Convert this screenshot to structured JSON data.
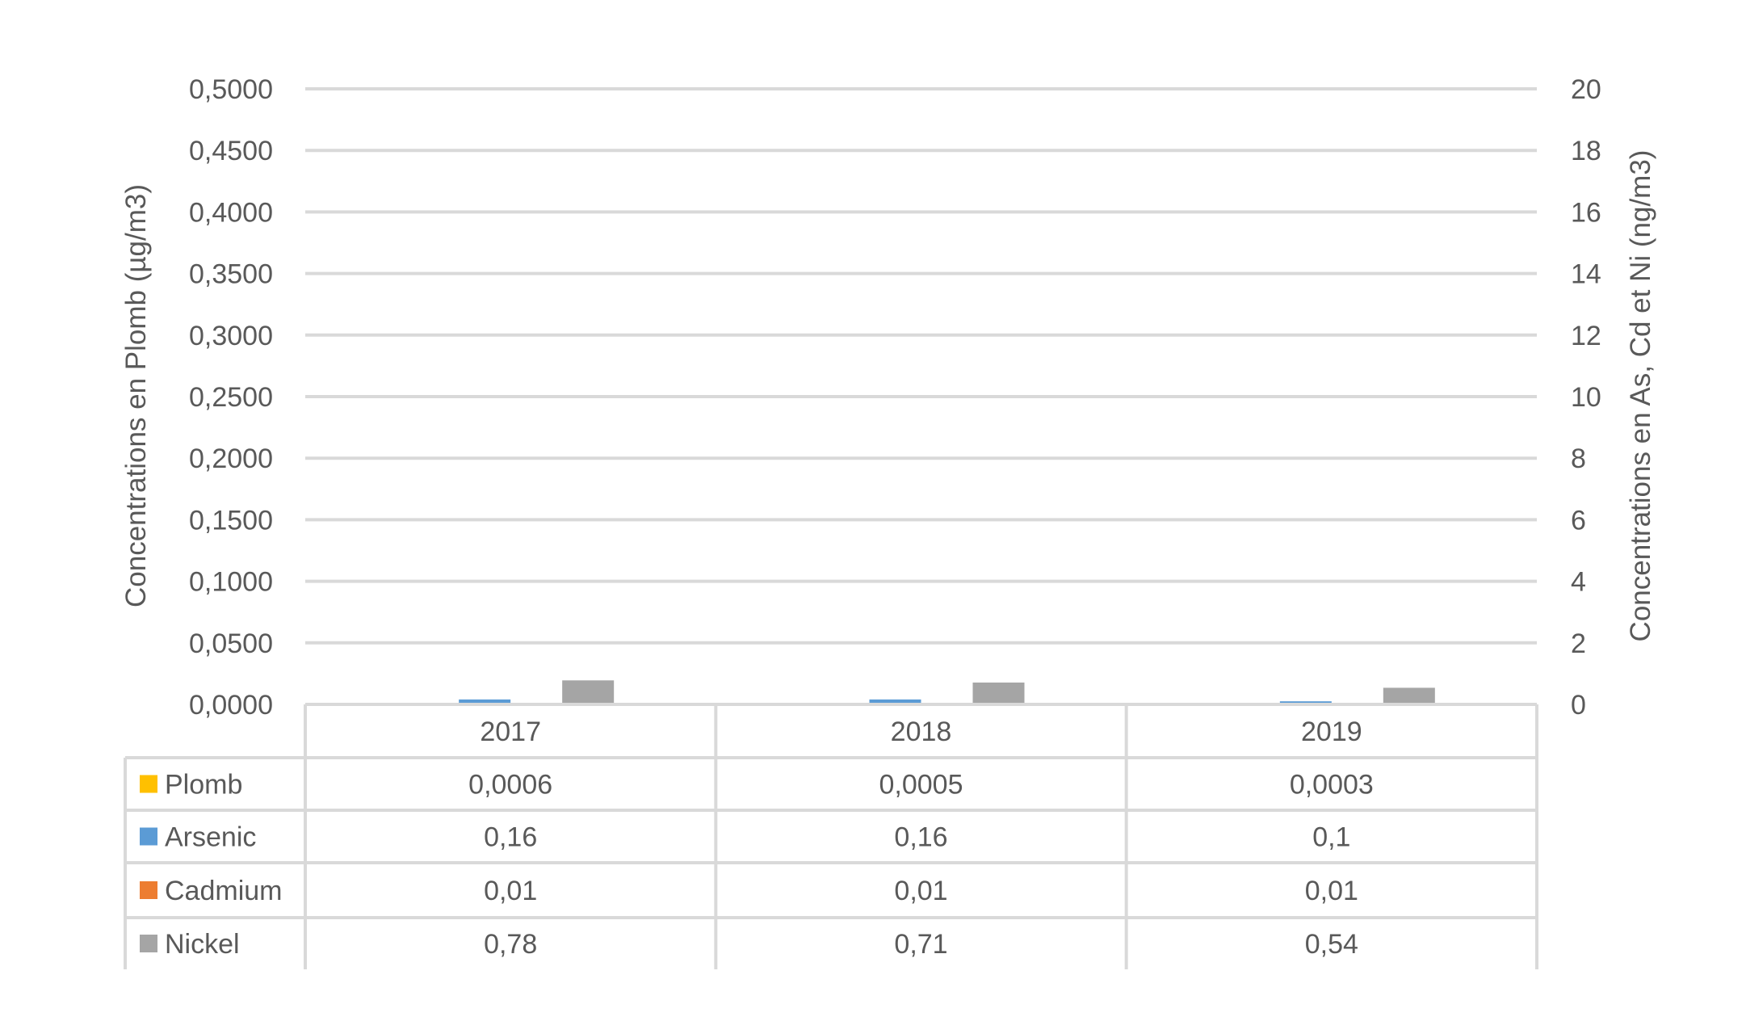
{
  "chart_data": {
    "type": "bar",
    "categories": [
      "2017",
      "2018",
      "2019"
    ],
    "series": [
      {
        "name": "Plomb",
        "axis": "left",
        "color": "#FFC000",
        "values": [
          0.0006,
          0.0005,
          0.0003
        ],
        "labels": [
          "0,0006",
          "0,0005",
          "0,0003"
        ]
      },
      {
        "name": "Arsenic",
        "axis": "right",
        "color": "#5B9BD5",
        "values": [
          0.16,
          0.16,
          0.1
        ],
        "labels": [
          "0,16",
          "0,16",
          "0,1"
        ]
      },
      {
        "name": "Cadmium",
        "axis": "right",
        "color": "#ED7D31",
        "values": [
          0.01,
          0.01,
          0.01
        ],
        "labels": [
          "0,01",
          "0,01",
          "0,01"
        ]
      },
      {
        "name": "Nickel",
        "axis": "right",
        "color": "#A5A5A5",
        "values": [
          0.78,
          0.71,
          0.54
        ],
        "labels": [
          "0,78",
          "0,71",
          "0,54"
        ]
      }
    ],
    "ylabel_left": "Concentrations en Plomb (µg/m3)",
    "ylabel_right": "Concentrations en As, Cd et Ni (ng/m3)",
    "ylim_left": [
      0,
      0.5
    ],
    "ylim_right": [
      0,
      20
    ],
    "yticks_left": [
      "0,0000",
      "0,0500",
      "0,1000",
      "0,1500",
      "0,2000",
      "0,2500",
      "0,3000",
      "0,3500",
      "0,4000",
      "0,4500",
      "0,5000"
    ],
    "yticks_right": [
      "0",
      "2",
      "4",
      "6",
      "8",
      "10",
      "12",
      "14",
      "16",
      "18",
      "20"
    ],
    "grid": true,
    "legend": "data table below chart",
    "grid_color": "#D9D9D9"
  }
}
